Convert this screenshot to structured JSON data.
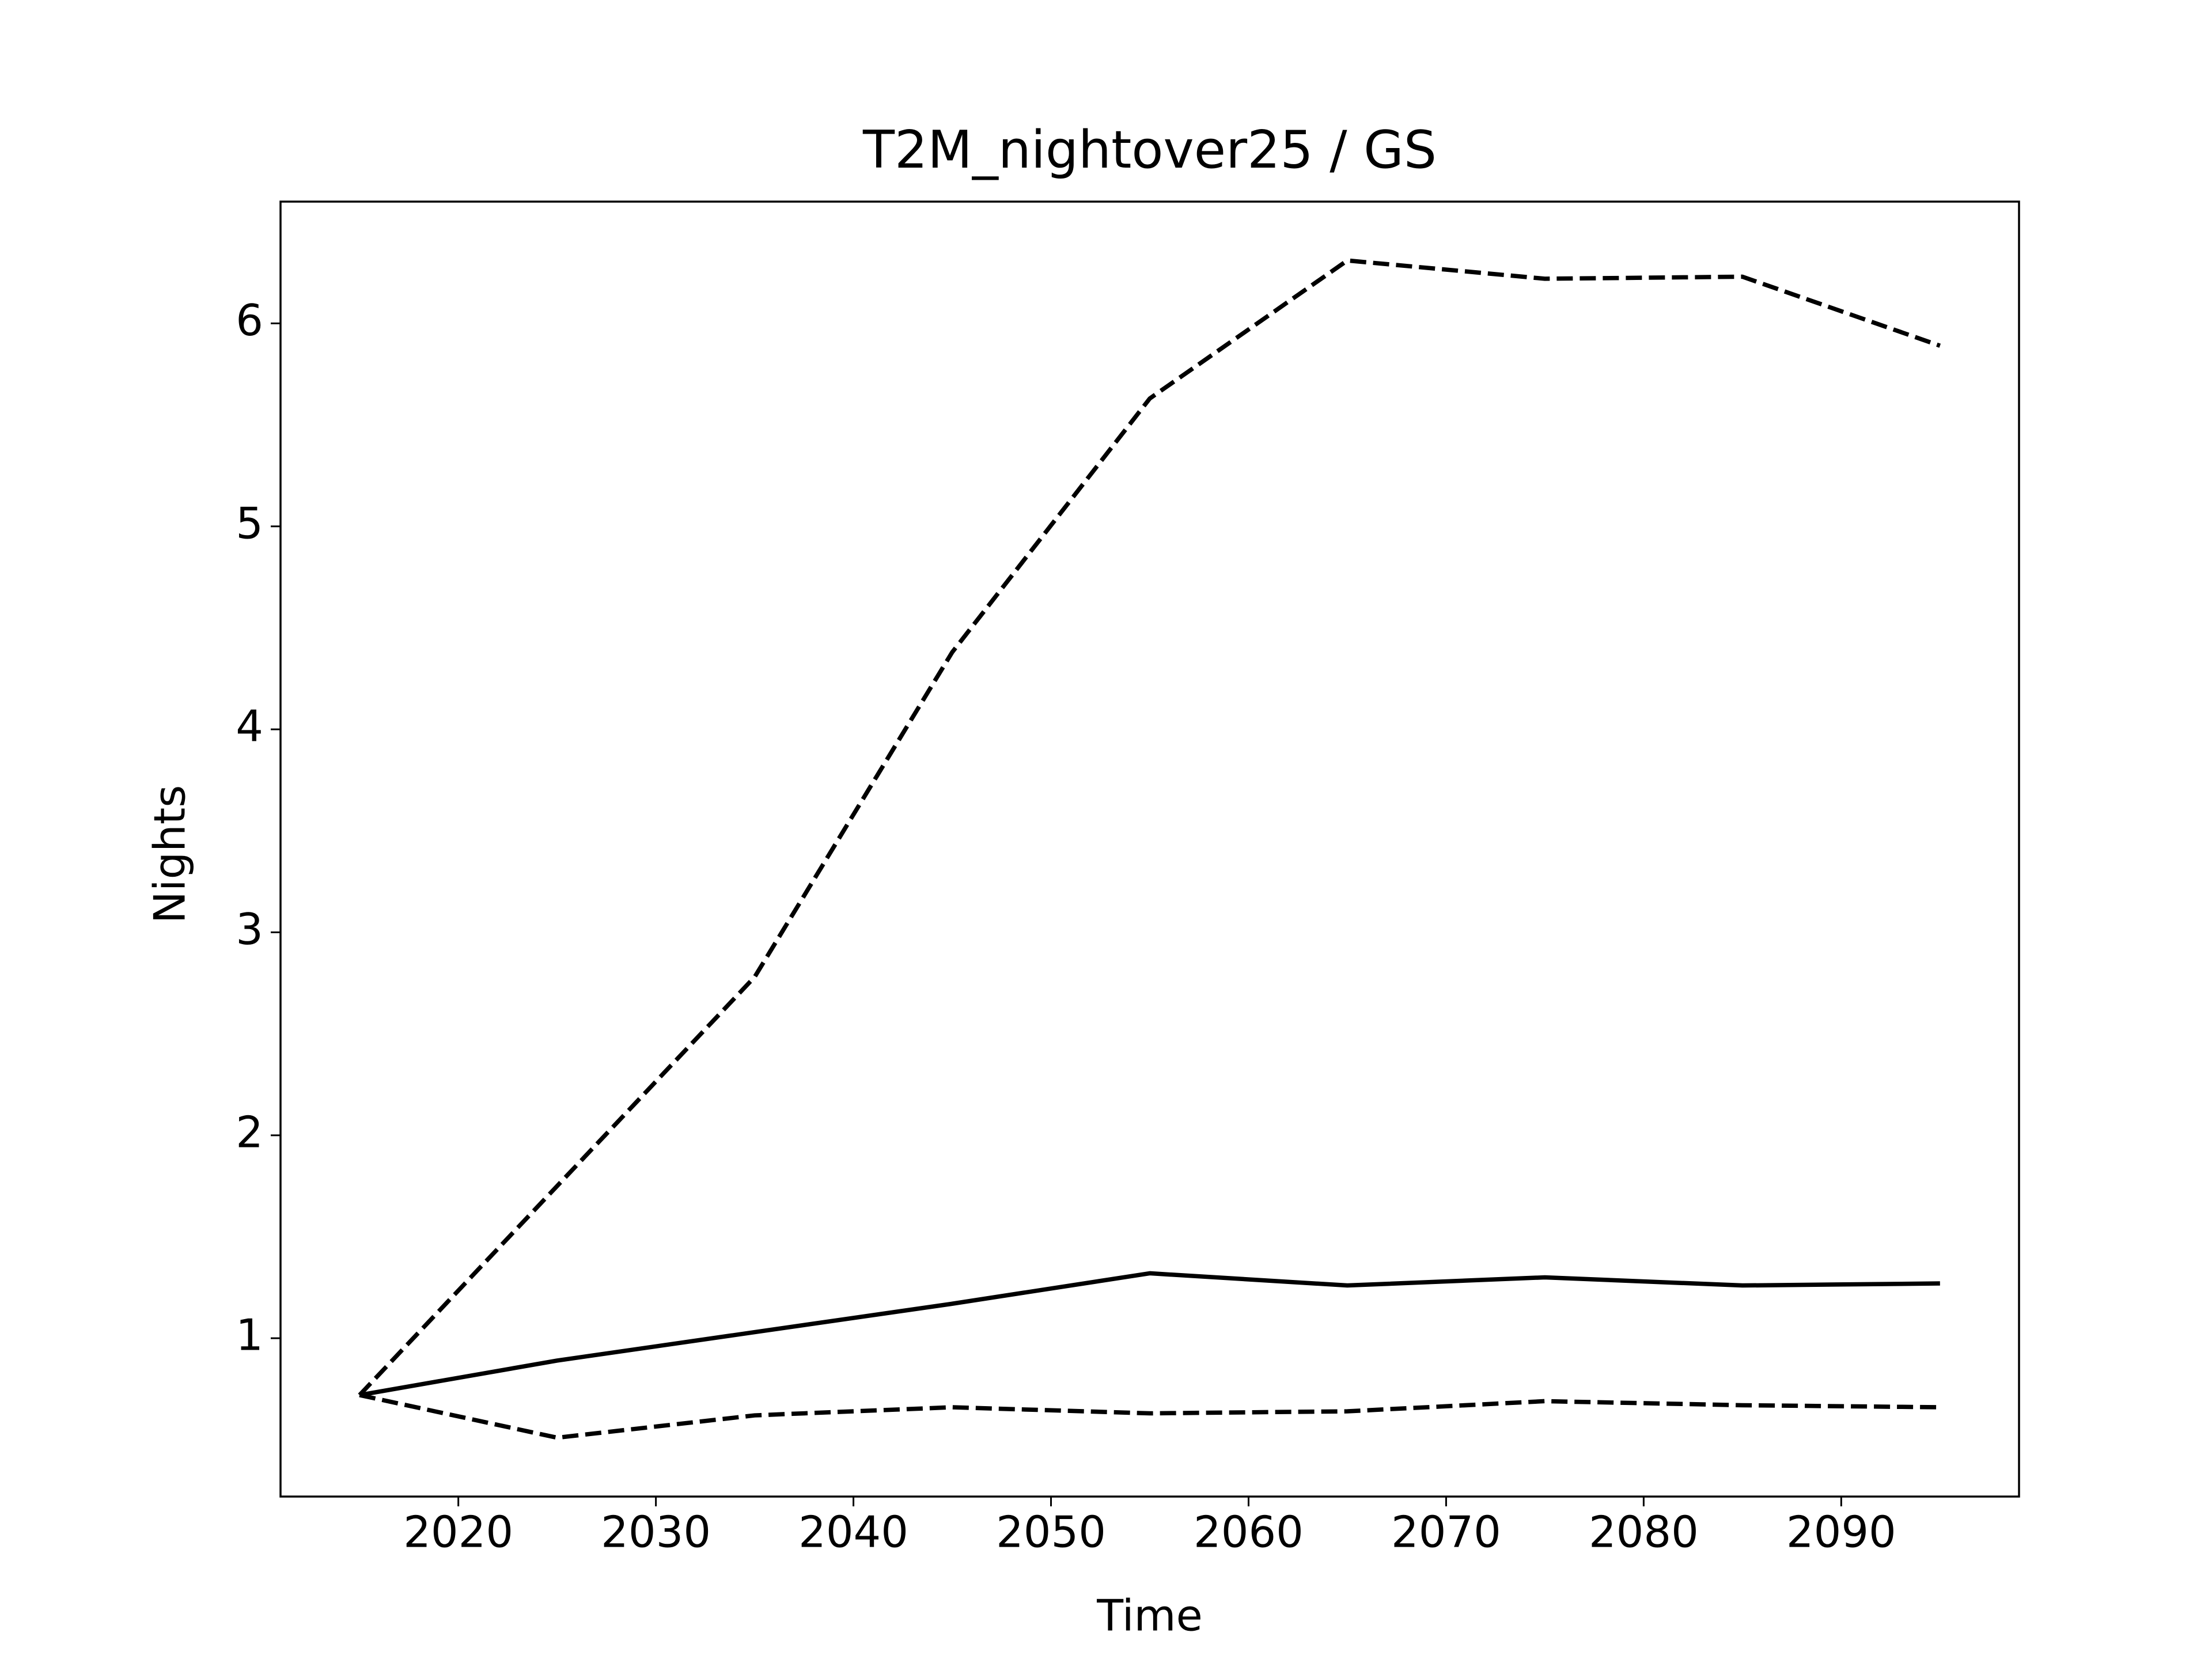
{
  "chart_data": {
    "type": "line",
    "title": "T2M_nightover25 / GS",
    "x_label": "Time",
    "y_label": "Nights",
    "x": [
      2015,
      2025,
      2035,
      2045,
      2055,
      2065,
      2075,
      2085,
      2095
    ],
    "series": [
      {
        "color": "#000000",
        "linestyle": "solid",
        "values": [
          0.72,
          0.89,
          1.03,
          1.17,
          1.32,
          1.26,
          1.3,
          1.26,
          1.27
        ]
      },
      {
        "color": "#000000",
        "linestyle": "dashed",
        "values": [
          0.72,
          1.75,
          2.78,
          4.38,
          5.63,
          6.31,
          6.22,
          6.23,
          5.89
        ]
      },
      {
        "color": "#000000",
        "linestyle": "dashed",
        "values": [
          0.72,
          0.51,
          0.62,
          0.66,
          0.63,
          0.64,
          0.69,
          0.67,
          0.66
        ]
      }
    ],
    "xlim": [
      2011,
      2099
    ],
    "ylim": [
      0.22,
      6.6
    ],
    "xticks": [
      2020,
      2030,
      2040,
      2050,
      2060,
      2070,
      2080,
      2090
    ],
    "yticks": [
      1,
      2,
      3,
      4,
      5,
      6
    ],
    "grid": false
  }
}
